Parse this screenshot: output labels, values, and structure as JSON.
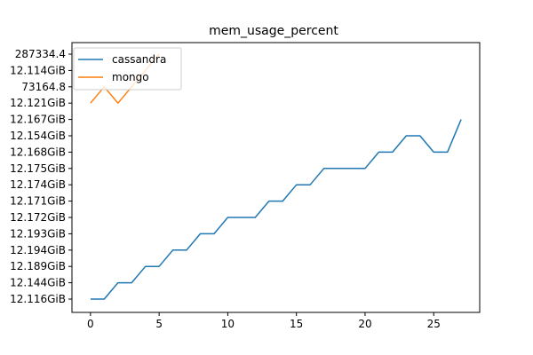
{
  "chart_data": {
    "type": "line",
    "title": "mem_usage_percent",
    "xlabel": "",
    "ylabel": "",
    "xlim": [
      -1.35,
      28.35
    ],
    "x_ticks": [
      0,
      5,
      10,
      15,
      20,
      25
    ],
    "y_categories": [
      "12.116GiB",
      "12.144GiB",
      "12.189GiB",
      "12.194GiB",
      "12.193GiB",
      "12.172GiB",
      "12.171GiB",
      "12.174GiB",
      "12.175GiB",
      "12.168GiB",
      "12.154GiB",
      "12.167GiB",
      "12.121GiB",
      "73164.8",
      "12.114GiB",
      "287334.4"
    ],
    "grid": false,
    "legend_position": "top-left",
    "series": [
      {
        "name": "cassandra",
        "color": "#1f77b4",
        "x": [
          0,
          1,
          2,
          3,
          4,
          5,
          6,
          7,
          8,
          9,
          10,
          11,
          12,
          13,
          14,
          15,
          16,
          17,
          18,
          19,
          20,
          21,
          22,
          23,
          24,
          25,
          26,
          27
        ],
        "y": [
          "12.116GiB",
          "12.116GiB",
          "12.144GiB",
          "12.144GiB",
          "12.189GiB",
          "12.189GiB",
          "12.194GiB",
          "12.194GiB",
          "12.193GiB",
          "12.193GiB",
          "12.172GiB",
          "12.172GiB",
          "12.172GiB",
          "12.171GiB",
          "12.171GiB",
          "12.174GiB",
          "12.174GiB",
          "12.175GiB",
          "12.175GiB",
          "12.175GiB",
          "12.175GiB",
          "12.168GiB",
          "12.168GiB",
          "12.154GiB",
          "12.154GiB",
          "12.168GiB",
          "12.168GiB",
          "12.167GiB"
        ]
      },
      {
        "name": "mongo",
        "color": "#ff7f0e",
        "x": [
          0,
          1,
          2,
          3,
          4,
          5
        ],
        "y": [
          "12.121GiB",
          "73164.8",
          "12.121GiB",
          "73164.8",
          "12.114GiB",
          "287334.4"
        ]
      }
    ]
  }
}
